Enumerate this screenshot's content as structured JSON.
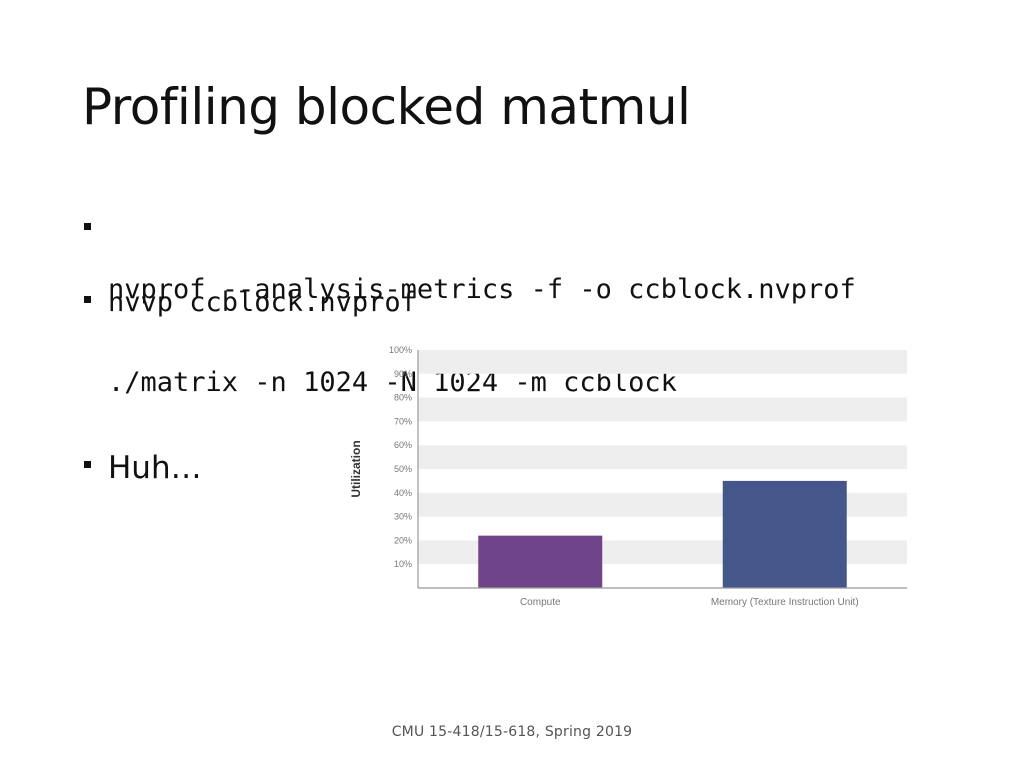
{
  "slide": {
    "title": "Profiling blocked matmul",
    "bullets": [
      {
        "type": "code",
        "lines": [
          "nvprof --analysis-metrics -f -o ccblock.nvprof",
          "./matrix -n 1024 -N 1024 -m ccblock"
        ]
      },
      {
        "type": "code",
        "lines": [
          "nvvp ccblock.nvprof"
        ]
      },
      {
        "type": "text",
        "text": "Huh…"
      }
    ],
    "footer": "CMU 15-418/15-618, Spring 2019"
  },
  "chart_data": {
    "type": "bar",
    "categories": [
      "Compute",
      "Memory (Texture Instruction Unit)"
    ],
    "values": [
      22,
      45
    ],
    "colors": [
      "#704488",
      "#45568a"
    ],
    "ylabel": "Utilization",
    "y_tick_labels": [
      "10%",
      "20%",
      "30%",
      "40%",
      "50%",
      "60%",
      "70%",
      "80%",
      "90%",
      "100%"
    ],
    "ylim": [
      0,
      100
    ],
    "grid": "alternating horizontal bands"
  }
}
